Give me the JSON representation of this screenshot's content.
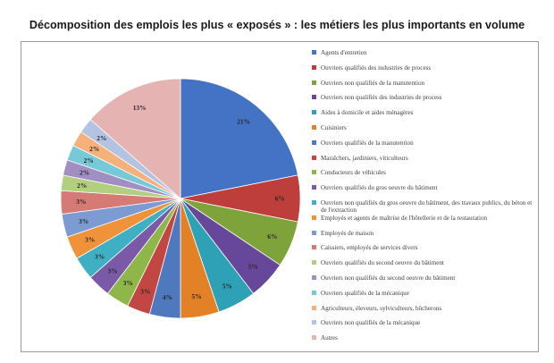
{
  "chart_data": {
    "type": "pie",
    "title": "Décomposition des emplois les plus « exposés » : les métiers les plus importants en volume",
    "legend_position": "right",
    "slices": [
      {
        "label": "Agents d'entretien",
        "value": 21,
        "value_label": "21%",
        "color": "#4472c4"
      },
      {
        "label": "Ouvriers qualifiés des industries de process",
        "value": 6,
        "value_label": "6%",
        "color": "#be3e3b"
      },
      {
        "label": "Ouvriers non qualifiés de la manutention",
        "value": 6,
        "value_label": "6%",
        "color": "#7ea33b"
      },
      {
        "label": "Ouvriers non qualifiés des industries de process",
        "value": 5,
        "value_label": "5%",
        "color": "#67479a"
      },
      {
        "label": "Aides à domicile et aides ménagères",
        "value": 5,
        "value_label": "5%",
        "color": "#2fa1b6"
      },
      {
        "label": "Cuisiniers",
        "value": 5,
        "value_label": "5%",
        "color": "#e38126"
      },
      {
        "label": "Ouvriers qualifiés de la manutention",
        "value": 4,
        "value_label": "4%",
        "color": "#4f79bf"
      },
      {
        "label": "Maraîchers, jardiniers, viticulteurs",
        "value": 3,
        "value_label": "3%",
        "color": "#c24742"
      },
      {
        "label": "Conducteurs de véhicules",
        "value": 3,
        "value_label": "3%",
        "color": "#8fb649"
      },
      {
        "label": "Ouvriers qualifiés du gros oeuvre du bâtiment",
        "value": 3,
        "value_label": "3%",
        "color": "#7a5aa8"
      },
      {
        "label": "Ouvriers non qualifiés du gros oeuvre du bâtiment, des travaux publics, du béton et de l'extraction",
        "value": 3,
        "value_label": "3%",
        "color": "#3fb0c4"
      },
      {
        "label": "Employés et agents de maîtrise de l'hôtellerie et de la restauration",
        "value": 3,
        "value_label": "3%",
        "color": "#f0923a"
      },
      {
        "label": "Employés de maison",
        "value": 3,
        "value_label": "3%",
        "color": "#7b9bd2"
      },
      {
        "label": "Caissiers, employés de services divers",
        "value": 3,
        "value_label": "3%",
        "color": "#d57a74"
      },
      {
        "label": "Ouvriers qualifiés du second oeuvre du bâtiment",
        "value": 2,
        "value_label": "2%",
        "color": "#b2cf80"
      },
      {
        "label": "Ouvriers non qualifiés du second oeuvre du bâtiment",
        "value": 2,
        "value_label": "2%",
        "color": "#a18ec2"
      },
      {
        "label": "Ouvriers qualifiés de la mécanique",
        "value": 2,
        "value_label": "2%",
        "color": "#77c9d8"
      },
      {
        "label": "Agriculteurs, éleveurs, sylviculteurs, bûcherons",
        "value": 2,
        "value_label": "2%",
        "color": "#f6b07a"
      },
      {
        "label": "Ouvriers non qualifiés de la mécanique",
        "value": 2,
        "value_label": "2%",
        "color": "#b5c3e2"
      },
      {
        "label": "Autres",
        "value": 13,
        "value_label": "13%",
        "color": "#e5b4b2"
      }
    ]
  }
}
